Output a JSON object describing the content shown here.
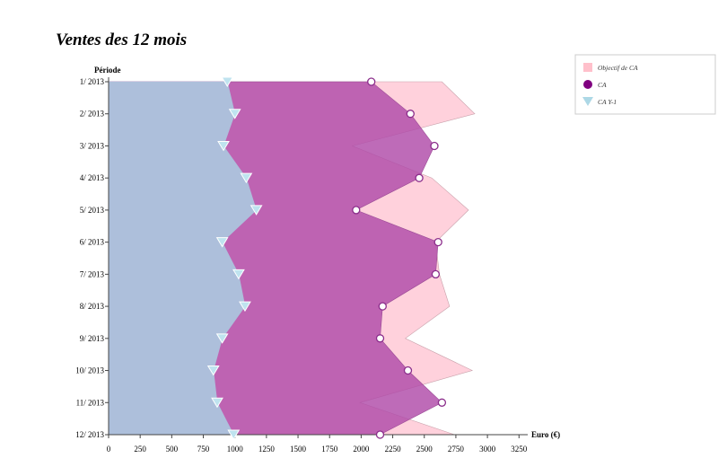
{
  "chart_data": {
    "type": "area",
    "orientation": "horizontal",
    "title": "Ventes des 12 mois",
    "y_axis_title": "Période",
    "x_axis_title": "Euro (€)",
    "categories": [
      "1/ 2013",
      "2/ 2013",
      "3/ 2013",
      "4/ 2013",
      "5/ 2013",
      "6/ 2013",
      "7/ 2013",
      "8/ 2013",
      "9/ 2013",
      "10/ 2013",
      "11/ 2013",
      "12/ 2013"
    ],
    "x_ticks": [
      0,
      250,
      500,
      750,
      1000,
      1250,
      1500,
      1750,
      2000,
      2250,
      2500,
      2750,
      3000,
      3250
    ],
    "xlim": [
      0,
      3250
    ],
    "legend_position": "top-right",
    "series": [
      {
        "name": "Objectif de CA",
        "marker": "square",
        "color": "#ffd1dc",
        "values": [
          2640,
          2900,
          1930,
          2560,
          2850,
          2590,
          2620,
          2700,
          2350,
          2880,
          1990,
          2740
        ]
      },
      {
        "name": "CA",
        "marker": "circle",
        "color": "#800080",
        "values": [
          2080,
          2390,
          2580,
          2460,
          1960,
          2610,
          2590,
          2170,
          2150,
          2370,
          2640,
          2150
        ]
      },
      {
        "name": "CA Y-1",
        "marker": "triangle",
        "color": "#add8e6",
        "values": [
          940,
          1000,
          910,
          1090,
          1170,
          900,
          1030,
          1080,
          900,
          830,
          860,
          990
        ]
      }
    ]
  }
}
